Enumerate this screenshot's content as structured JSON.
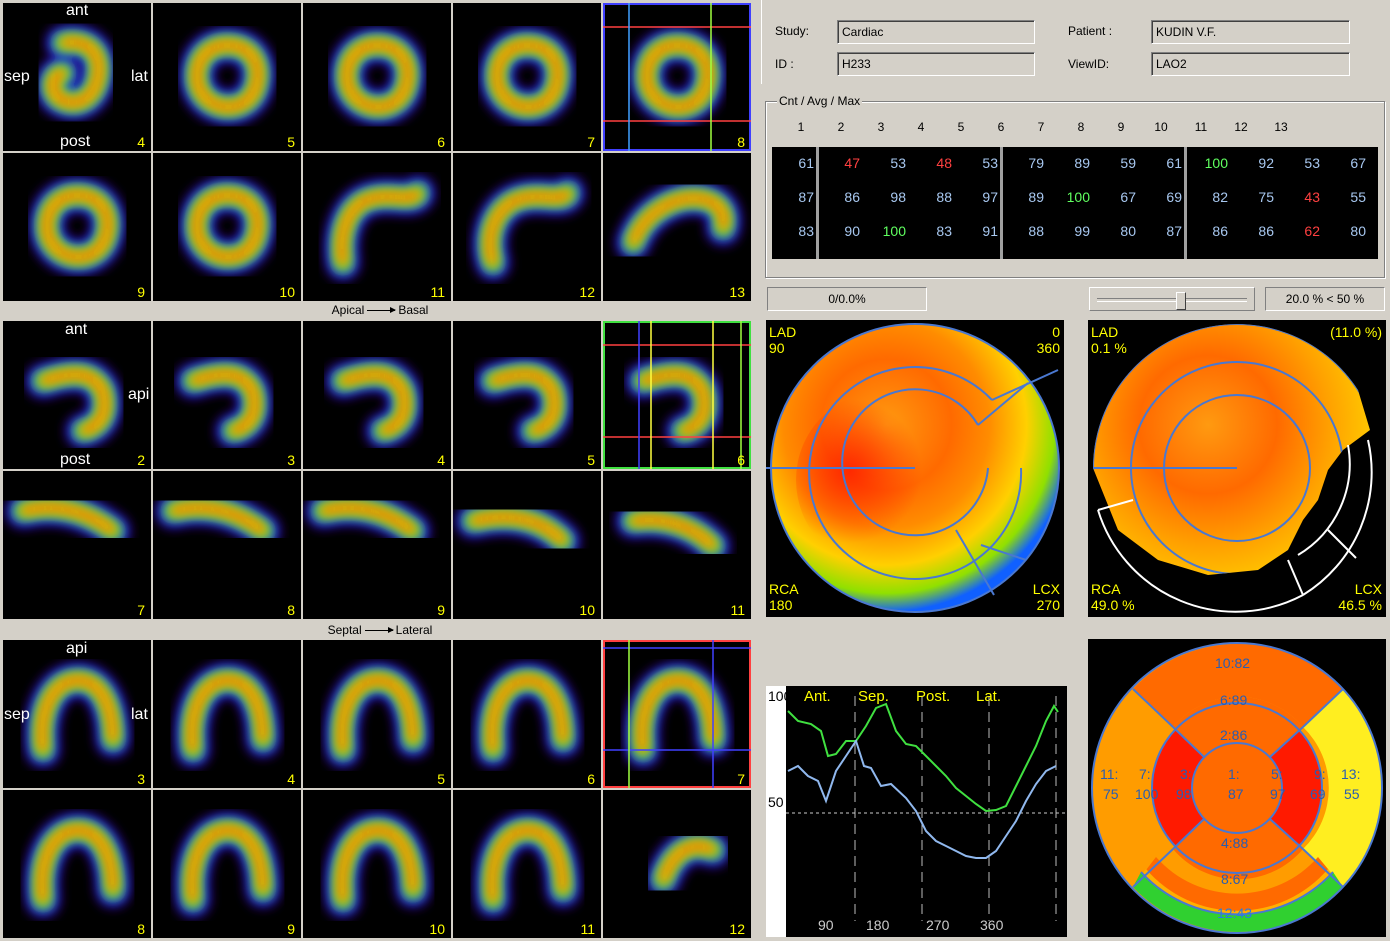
{
  "study": {
    "study_label": "Study:",
    "study_value": "Cardiac",
    "id_label": "ID :",
    "id_value": "H233",
    "patient_label": "Patient :",
    "patient_value": "KUDIN V.F.",
    "viewid_label": "ViewID:",
    "viewid_value": "LAO2"
  },
  "stats": {
    "title": "Cnt / Avg / Max",
    "columns": [
      "1",
      "2",
      "3",
      "4",
      "5",
      "6",
      "7",
      "8",
      "9",
      "10",
      "11",
      "12",
      "13"
    ],
    "rows": [
      [
        "61",
        "47",
        "53",
        "48",
        "53",
        "79",
        "89",
        "59",
        "61",
        "100",
        "92",
        "53",
        "67"
      ],
      [
        "87",
        "86",
        "98",
        "88",
        "97",
        "89",
        "100",
        "67",
        "69",
        "82",
        "75",
        "43",
        "55"
      ],
      [
        "83",
        "90",
        "100",
        "83",
        "91",
        "88",
        "99",
        "80",
        "87",
        "86",
        "86",
        "62",
        "80"
      ]
    ]
  },
  "controls": {
    "defect_readout": "0/0.0%",
    "threshold_readout": "20.0 % < 50 %",
    "slider_level": 0.55
  },
  "short_axis": {
    "labels": {
      "top": "ant",
      "left": "sep",
      "right": "lat",
      "bottom": "post"
    },
    "numbers": [
      "4",
      "5",
      "6",
      "7",
      "8",
      "9",
      "10",
      "11",
      "12",
      "13"
    ],
    "caption_left": "Apical",
    "caption_right": "Basal"
  },
  "vla": {
    "labels": {
      "top": "ant",
      "right": "api",
      "bottom": "post"
    },
    "numbers": [
      "2",
      "3",
      "4",
      "5",
      "6",
      "7",
      "8",
      "9",
      "10",
      "11"
    ],
    "caption_left": "Septal",
    "caption_right": "Lateral"
  },
  "hla": {
    "labels": {
      "top": "api",
      "left": "sep",
      "right": "lat"
    },
    "numbers": [
      "3",
      "4",
      "5",
      "6",
      "7",
      "8",
      "9",
      "10",
      "11",
      "12"
    ]
  },
  "bullseye": {
    "lad": "LAD",
    "lad_angle": "90",
    "top_right_1": "0",
    "top_right_2": "360",
    "rca": "RCA",
    "rca_angle": "180",
    "lcx": "LCX",
    "lcx_angle": "270"
  },
  "defect_map": {
    "lad": "LAD",
    "lad_value": "0.1 %",
    "top_right": "(11.0 %)",
    "rca": "RCA",
    "rca_value": "49.0 %",
    "lcx": "LCX",
    "lcx_value": "46.5 %"
  },
  "profile": {
    "y_top": "100",
    "y_mid": "50",
    "regions": [
      "Ant.",
      "Sep.",
      "Post.",
      "Lat."
    ],
    "x_ticks": [
      "90",
      "180",
      "270",
      "360"
    ]
  },
  "segments": {
    "s10": "10:82",
    "s6": "6:89",
    "s2": "2:86",
    "s1a": "1:",
    "s1b": "87",
    "s3a": "3:",
    "s3b": "98",
    "s5a": "5:",
    "s5b": "97",
    "s7a": "7:",
    "s7b": "100",
    "s9a": "9:",
    "s9b": "69",
    "s11a": "11:",
    "s11b": "75",
    "s13a": "13:",
    "s13b": "55",
    "s4": "4:88",
    "s8": "8:67",
    "s12": "12:43"
  }
}
